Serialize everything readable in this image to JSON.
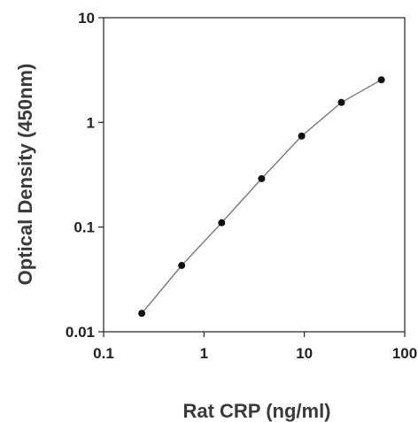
{
  "chart_data": {
    "type": "line",
    "xlabel": "Rat CRP (ng/ml)",
    "ylabel": "Optical Density (450nm)",
    "x_scale": "log",
    "y_scale": "log",
    "xlim": [
      0.1,
      100
    ],
    "ylim": [
      0.01,
      10
    ],
    "x_ticks": [
      {
        "value": 0.1,
        "label": "0.1"
      },
      {
        "value": 1,
        "label": "1"
      },
      {
        "value": 10,
        "label": "10"
      },
      {
        "value": 100,
        "label": "100"
      }
    ],
    "y_ticks": [
      {
        "value": 0.01,
        "label": "0.01"
      },
      {
        "value": 0.1,
        "label": "0.1"
      },
      {
        "value": 1,
        "label": "1"
      },
      {
        "value": 10,
        "label": "10"
      }
    ],
    "grid": false,
    "legend": "none",
    "series": [
      {
        "color": "#111111",
        "line_color": "#7a7a7a",
        "points": [
          {
            "x": 0.24,
            "y": 0.015
          },
          {
            "x": 0.6,
            "y": 0.043
          },
          {
            "x": 1.5,
            "y": 0.11
          },
          {
            "x": 3.75,
            "y": 0.29
          },
          {
            "x": 9.4,
            "y": 0.74
          },
          {
            "x": 23.4,
            "y": 1.55
          },
          {
            "x": 58.5,
            "y": 2.55
          }
        ]
      }
    ]
  }
}
